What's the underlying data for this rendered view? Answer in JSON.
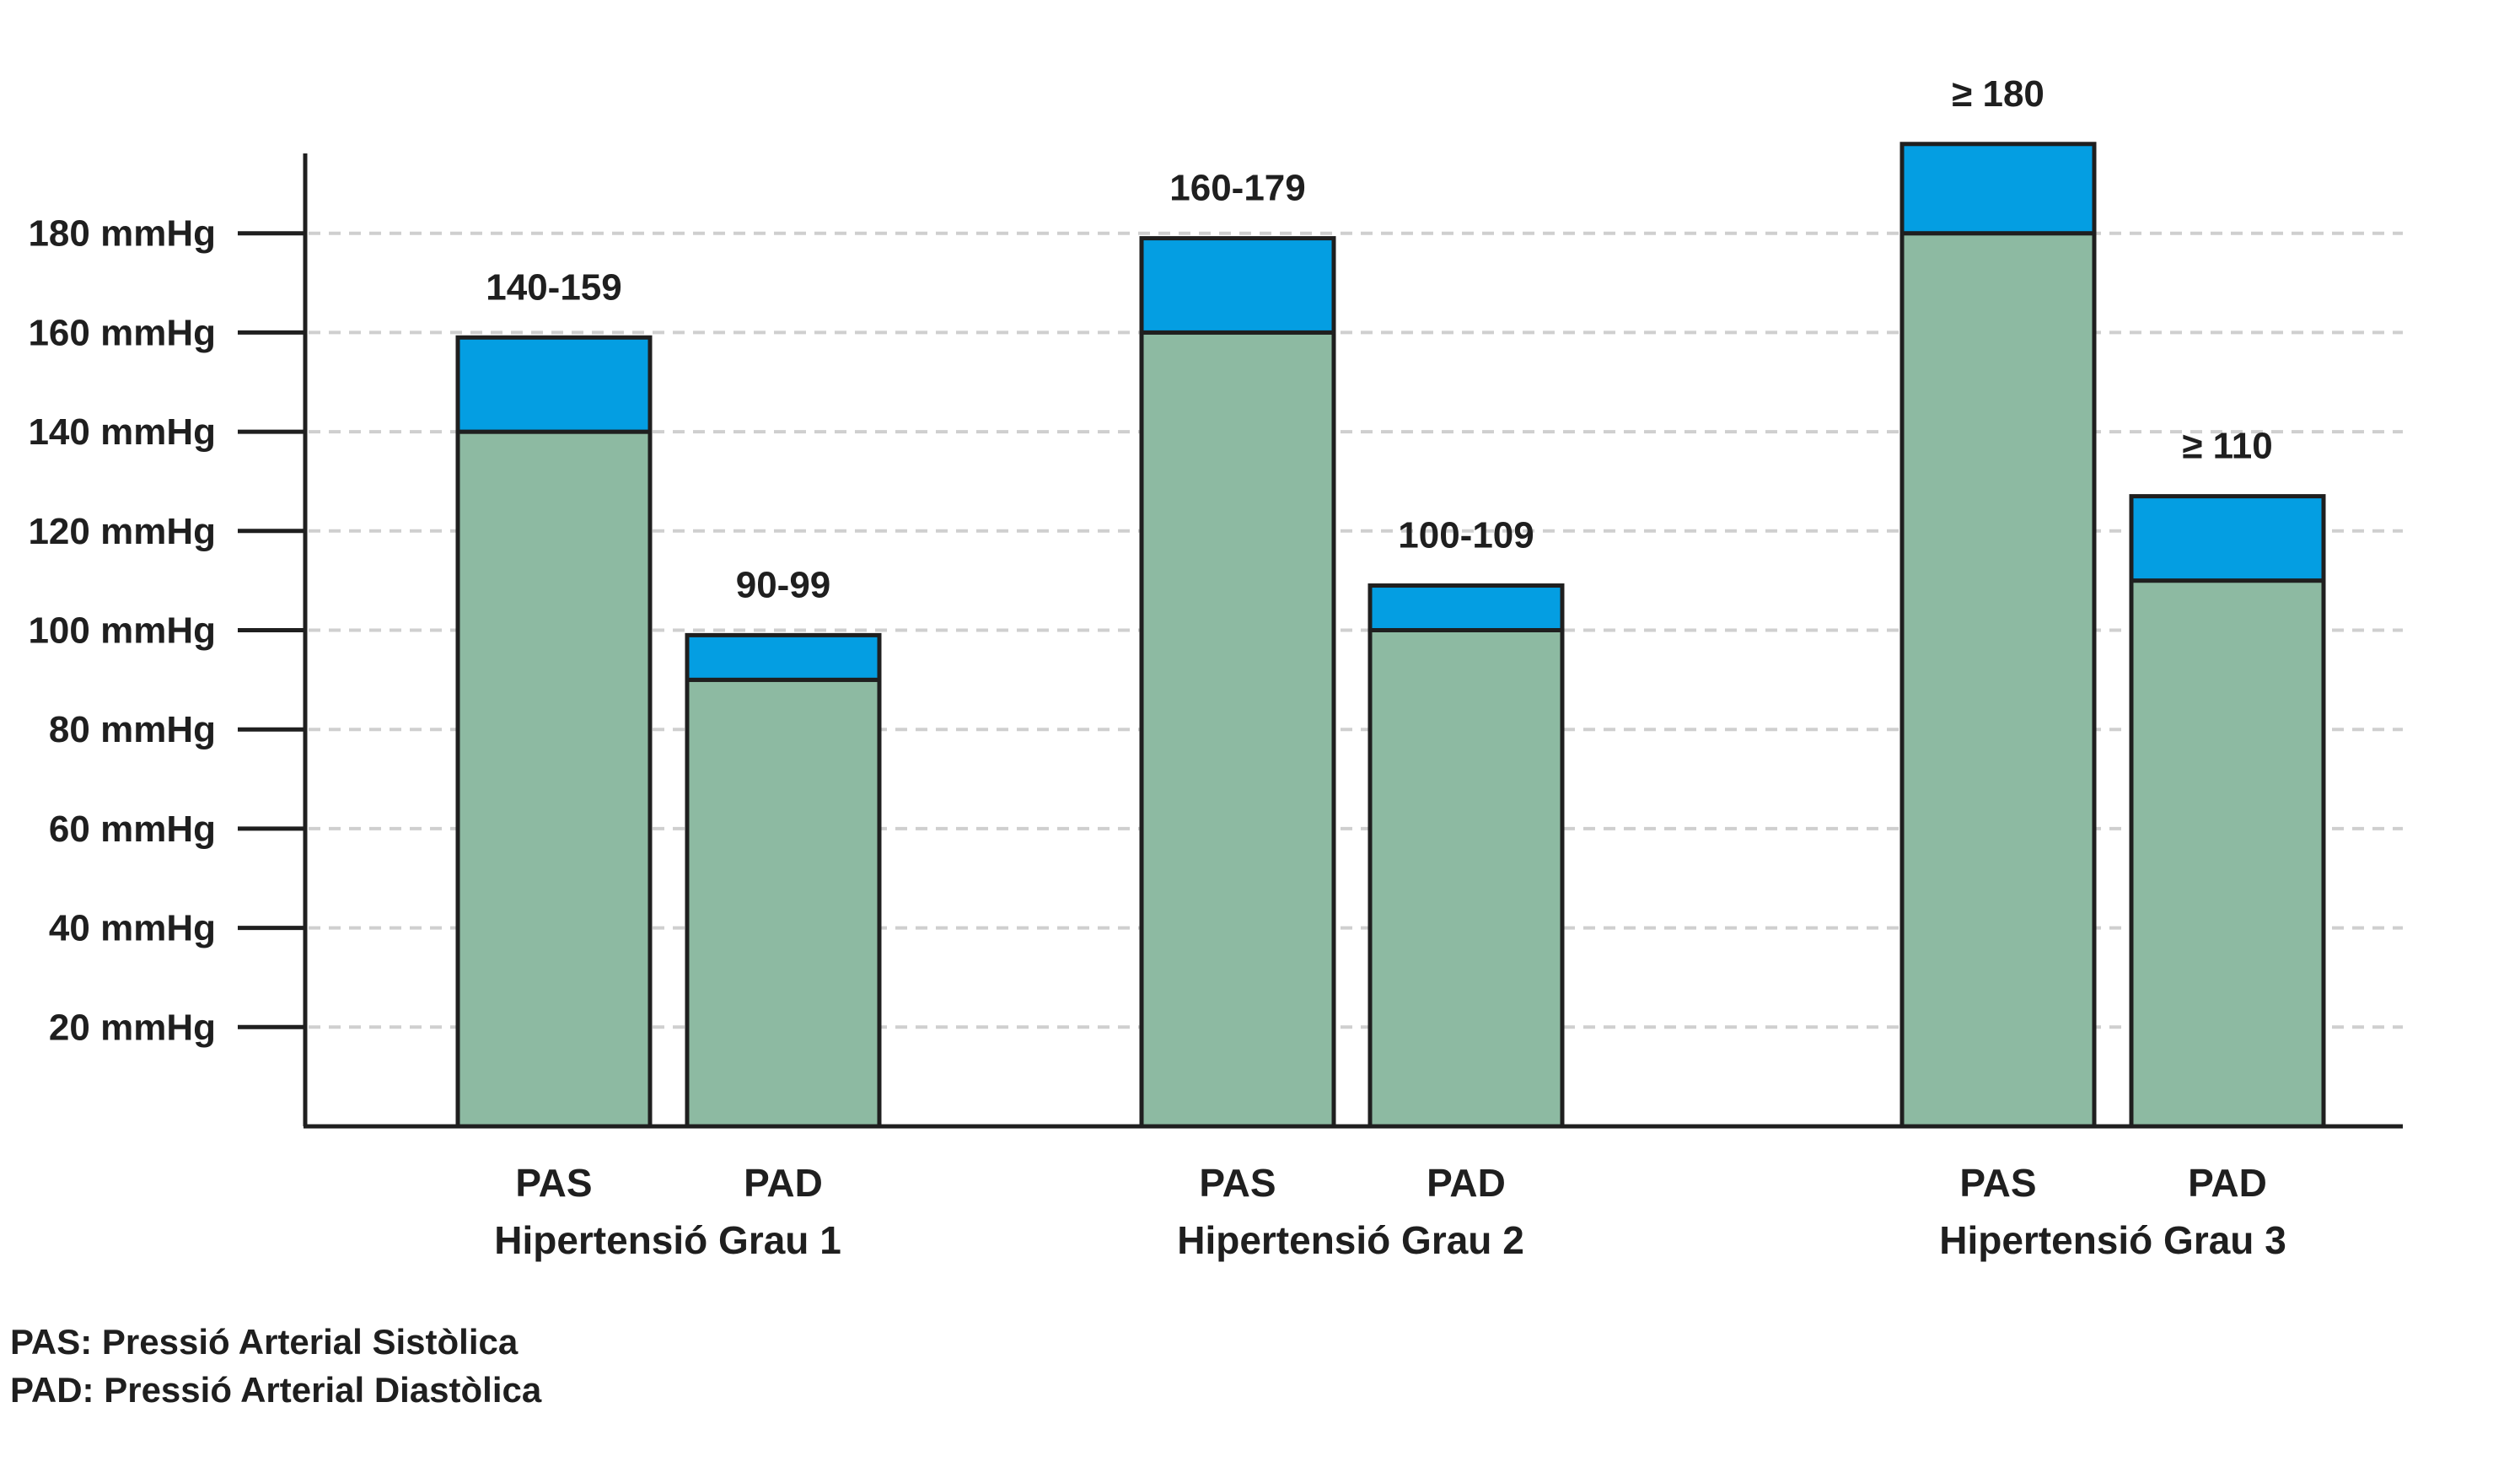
{
  "chart_data": {
    "type": "bar",
    "stacked": true,
    "ylim": [
      0,
      200
    ],
    "y_ticks": [
      20,
      40,
      60,
      80,
      100,
      120,
      140,
      160,
      180
    ],
    "y_tick_labels": [
      "20 mmHg",
      "40 mmHg",
      "60 mmHg",
      "80 mmHg",
      "100 mmHg",
      "120 mmHg",
      "140 mmHg",
      "160 mmHg",
      "180 mmHg"
    ],
    "grid": true,
    "colors": {
      "base": "#8dbaa2",
      "range": "#049ee2",
      "axis": "#1f1f1f",
      "grid": "#cfcfcf"
    },
    "groups": [
      {
        "name": "Hipertensió Grau 1",
        "bars": [
          {
            "label": "PAS",
            "low": 140,
            "high": 159,
            "annotation": "140-159"
          },
          {
            "label": "PAD",
            "low": 90,
            "high": 99,
            "annotation": "90-99"
          }
        ]
      },
      {
        "name": "Hipertensió Grau 2",
        "bars": [
          {
            "label": "PAS",
            "low": 160,
            "high": 179,
            "annotation": "160-179"
          },
          {
            "label": "PAD",
            "low": 100,
            "high": 109,
            "annotation": "100-109"
          }
        ]
      },
      {
        "name": "Hipertensió Grau 3",
        "bars": [
          {
            "label": "PAS",
            "low": 180,
            "high": 198,
            "annotation": "≥ 180"
          },
          {
            "label": "PAD",
            "low": 110,
            "high": 127,
            "annotation": "≥ 110"
          }
        ]
      }
    ]
  },
  "legend": {
    "pas": "PAS: Pressió Arterial Sistòlica",
    "pad": "PAD: Pressió Arterial Diastòlica"
  }
}
